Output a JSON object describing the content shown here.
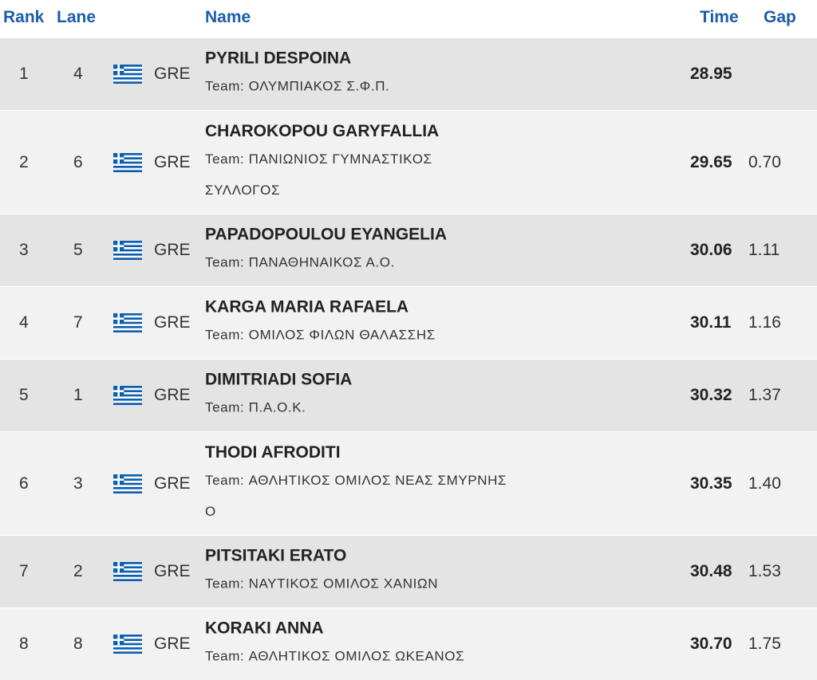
{
  "colors": {
    "header_text": "#1a5ea8",
    "row_light": "#f2f2f2",
    "row_dark": "#e4e4e4",
    "flag_blue": "#0d5eaf",
    "flag_white": "#ffffff"
  },
  "header": {
    "rank": "Rank",
    "lane": "Lane",
    "flag": "",
    "name": "Name",
    "time": "Time",
    "gap": "Gap"
  },
  "rows": [
    {
      "rank": "1",
      "lane": "4",
      "flag_icon": "greece-flag-icon",
      "country": "GRE",
      "name": "PYRILI DESPOINA",
      "team": "Team: ΟΛΥΜΠΙΑΚΟΣ Σ.Φ.Π.",
      "time": "28.95",
      "gap": ""
    },
    {
      "rank": "2",
      "lane": "6",
      "flag_icon": "greece-flag-icon",
      "country": "GRE",
      "name": "CHAROKOPOU GARYFALLIA",
      "team": "Team: ΠΑΝΙΩΝΙΟΣ ΓΥΜΝΑΣΤΙΚΟΣ ΣΥΛΛΟΓΟΣ",
      "time": "29.65",
      "gap": "0.70"
    },
    {
      "rank": "3",
      "lane": "5",
      "flag_icon": "greece-flag-icon",
      "country": "GRE",
      "name": "PAPADOPOULOU EYANGELIA",
      "team": "Team: ΠΑΝΑΘΗΝΑΙΚΟΣ Α.Ο.",
      "time": "30.06",
      "gap": "1.11"
    },
    {
      "rank": "4",
      "lane": "7",
      "flag_icon": "greece-flag-icon",
      "country": "GRE",
      "name": "KARGA MARIA RAFAELA",
      "team": "Team: ΟΜΙΛΟΣ ΦΙΛΩΝ ΘΑΛΑΣΣΗΣ",
      "time": "30.11",
      "gap": "1.16"
    },
    {
      "rank": "5",
      "lane": "1",
      "flag_icon": "greece-flag-icon",
      "country": "GRE",
      "name": "DIMITRIADI SOFIA",
      "team": "Team: Π.Α.Ο.Κ.",
      "time": "30.32",
      "gap": "1.37"
    },
    {
      "rank": "6",
      "lane": "3",
      "flag_icon": "greece-flag-icon",
      "country": "GRE",
      "name": "THODI AFRODITI",
      "team": "Team: ΑΘΛΗΤΙΚΟΣ ΟΜΙΛΟΣ ΝΕΑΣ ΣΜΥΡΝΗΣ Ο",
      "time": "30.35",
      "gap": "1.40"
    },
    {
      "rank": "7",
      "lane": "2",
      "flag_icon": "greece-flag-icon",
      "country": "GRE",
      "name": "PITSITAKI ERATO",
      "team": "Team: ΝΑΥΤΙΚΟΣ ΟΜΙΛΟΣ ΧΑΝΙΩΝ",
      "time": "30.48",
      "gap": "1.53"
    },
    {
      "rank": "8",
      "lane": "8",
      "flag_icon": "greece-flag-icon",
      "country": "GRE",
      "name": "KORAKI ANNA",
      "team": "Team: ΑΘΛΗΤΙΚΟΣ ΟΜΙΛΟΣ ΩΚΕΑΝΟΣ",
      "time": "30.70",
      "gap": "1.75"
    }
  ]
}
